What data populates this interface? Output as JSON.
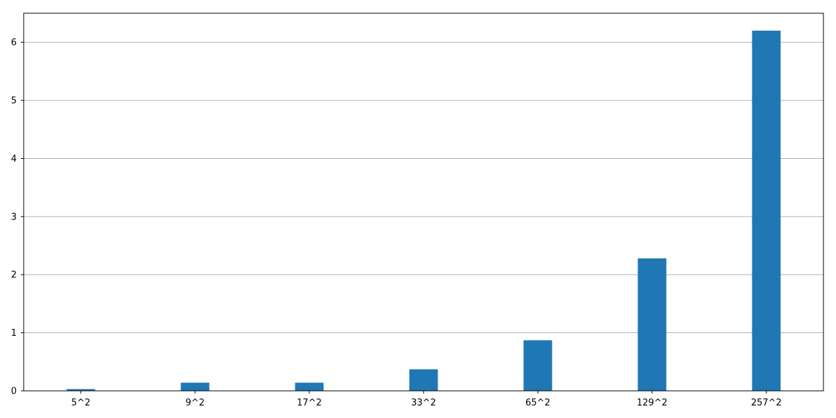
{
  "chart_data": {
    "type": "bar",
    "categories": [
      "5^2",
      "9^2",
      "17^2",
      "33^2",
      "65^2",
      "129^2",
      "257^2"
    ],
    "values": [
      0.03,
      0.14,
      0.14,
      0.37,
      0.87,
      2.28,
      6.2
    ],
    "title": "",
    "xlabel": "",
    "ylabel": "",
    "ylim": [
      0,
      6.5
    ],
    "yticks": [
      0,
      1,
      2,
      3,
      4,
      5,
      6
    ],
    "grid": "horizontal",
    "bar_color": "#1f77b4",
    "grid_color": "#b0b0b0"
  }
}
